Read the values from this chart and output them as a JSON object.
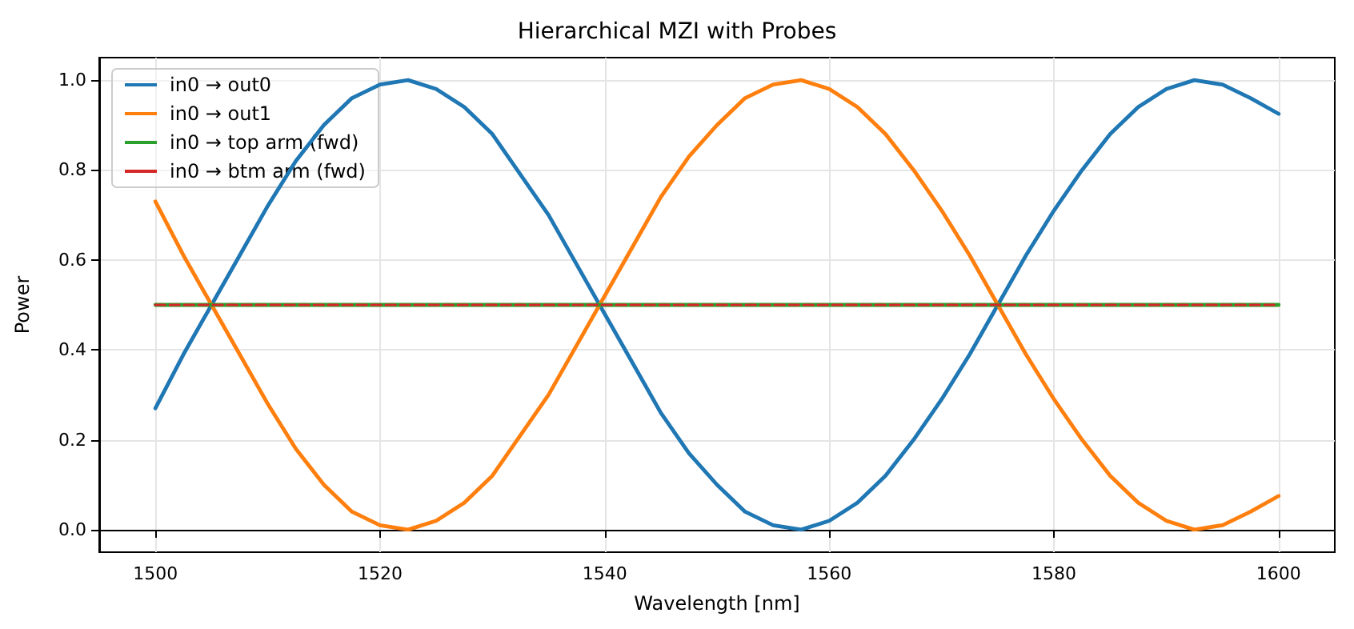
{
  "chart_data": {
    "type": "line",
    "title": "Hierarchical MZI with Probes",
    "xlabel": "Wavelength [nm]",
    "ylabel": "Power",
    "x": [
      1500,
      1502.5,
      1505,
      1507.5,
      1510,
      1512.5,
      1515,
      1517.5,
      1520,
      1522.5,
      1525,
      1527.5,
      1530,
      1532.5,
      1535,
      1537.5,
      1540,
      1542.5,
      1545,
      1547.5,
      1550,
      1552.5,
      1555,
      1557.5,
      1560,
      1562.5,
      1565,
      1567.5,
      1570,
      1572.5,
      1575,
      1577.5,
      1580,
      1582.5,
      1585,
      1587.5,
      1590,
      1592.5,
      1595,
      1597.5,
      1600
    ],
    "series": [
      {
        "name": "in0 → out0",
        "color": "#1f77b4",
        "values": [
          0.27,
          0.39,
          0.5,
          0.61,
          0.72,
          0.82,
          0.9,
          0.96,
          0.99,
          1.0,
          0.98,
          0.94,
          0.88,
          0.79,
          0.7,
          0.59,
          0.48,
          0.37,
          0.26,
          0.17,
          0.1,
          0.04,
          0.01,
          0.0,
          0.02,
          0.06,
          0.12,
          0.2,
          0.29,
          0.39,
          0.5,
          0.61,
          0.71,
          0.8,
          0.88,
          0.94,
          0.98,
          1.0,
          0.99,
          0.96,
          0.925
        ]
      },
      {
        "name": "in0 → out1",
        "color": "#ff7f0e",
        "values": [
          0.73,
          0.61,
          0.5,
          0.39,
          0.28,
          0.18,
          0.1,
          0.04,
          0.01,
          0.0,
          0.02,
          0.06,
          0.12,
          0.21,
          0.3,
          0.41,
          0.52,
          0.63,
          0.74,
          0.83,
          0.9,
          0.96,
          0.99,
          1.0,
          0.98,
          0.94,
          0.88,
          0.8,
          0.71,
          0.61,
          0.5,
          0.39,
          0.29,
          0.2,
          0.12,
          0.06,
          0.02,
          0.0,
          0.01,
          0.04,
          0.075
        ]
      },
      {
        "name": "in0 → top arm (fwd)",
        "color": "#2ca02c",
        "line_style": "solid",
        "values": [
          0.5,
          0.5,
          0.5,
          0.5,
          0.5,
          0.5,
          0.5,
          0.5,
          0.5,
          0.5,
          0.5,
          0.5,
          0.5,
          0.5,
          0.5,
          0.5,
          0.5,
          0.5,
          0.5,
          0.5,
          0.5,
          0.5,
          0.5,
          0.5,
          0.5,
          0.5,
          0.5,
          0.5,
          0.5,
          0.5,
          0.5,
          0.5,
          0.5,
          0.5,
          0.5,
          0.5,
          0.5,
          0.5,
          0.5,
          0.5,
          0.5
        ]
      },
      {
        "name": "in0 → btm arm (fwd)",
        "color": "#d62728",
        "line_style": "dashed",
        "values": [
          0.5,
          0.5,
          0.5,
          0.5,
          0.5,
          0.5,
          0.5,
          0.5,
          0.5,
          0.5,
          0.5,
          0.5,
          0.5,
          0.5,
          0.5,
          0.5,
          0.5,
          0.5,
          0.5,
          0.5,
          0.5,
          0.5,
          0.5,
          0.5,
          0.5,
          0.5,
          0.5,
          0.5,
          0.5,
          0.5,
          0.5,
          0.5,
          0.5,
          0.5,
          0.5,
          0.5,
          0.5,
          0.5,
          0.5,
          0.5,
          0.5
        ]
      }
    ],
    "xlim": [
      1495,
      1605
    ],
    "xticks": [
      1500,
      1520,
      1540,
      1560,
      1580,
      1600
    ],
    "ylim": [
      -0.05,
      1.05
    ],
    "yticks": [
      {
        "value": 0,
        "label": "0.0"
      },
      {
        "value": 0.2,
        "label": "0.2"
      },
      {
        "value": 0.4,
        "label": "0.4"
      },
      {
        "value": 0.6,
        "label": "0.6"
      },
      {
        "value": 0.8,
        "label": "0.8"
      },
      {
        "value": 1,
        "label": "1.0"
      }
    ],
    "grid": true,
    "legend": "top left",
    "marker": "none"
  }
}
